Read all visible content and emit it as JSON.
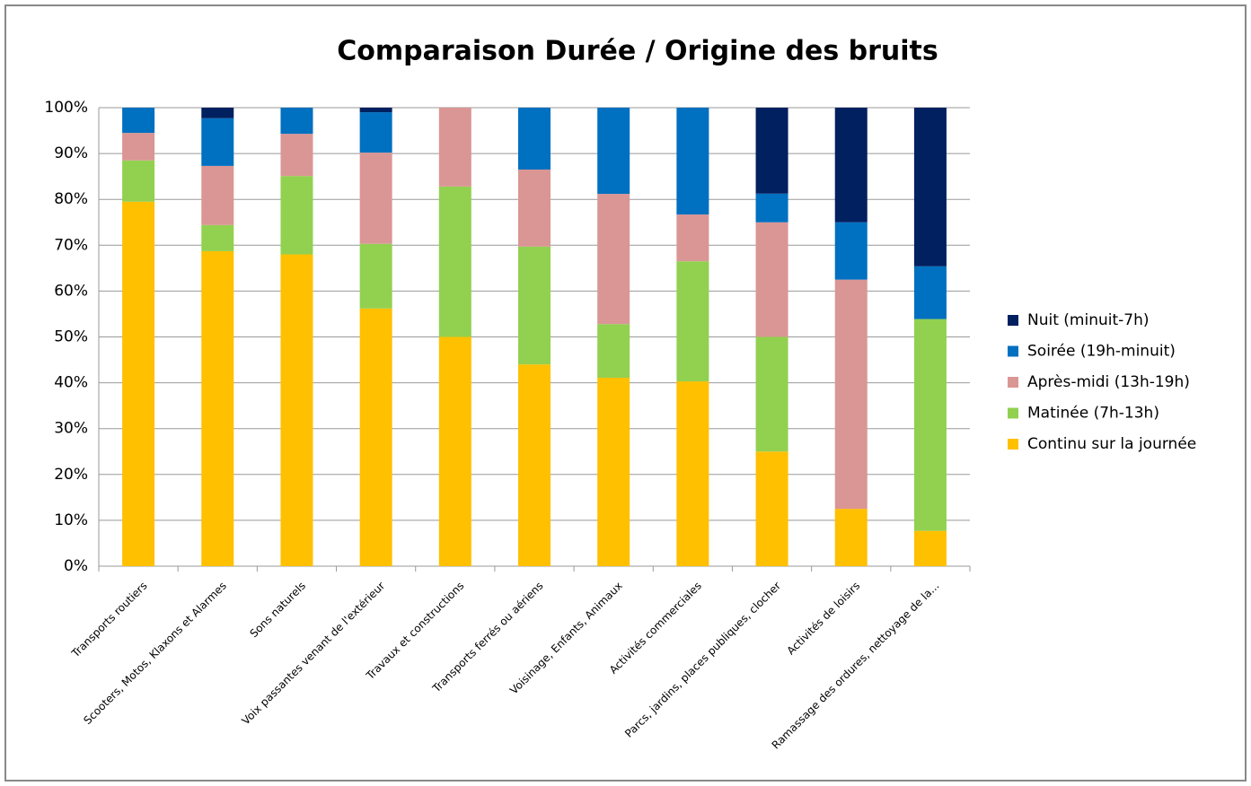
{
  "chart_data": {
    "type": "stacked_bar",
    "title": "Comparaison Durée / Origine des bruits",
    "categories": [
      "Transports routiers",
      "Scooters, Motos, Klaxons et Alarmes",
      "Sons naturels",
      "Voix passantes venant de l'extérieur",
      "Travaux et constructions",
      "Transports ferrés ou aériens",
      "Voisinage, Enfants, Animaux",
      "Activités commerciales",
      "Parcs, jardins, places publiques, clocher",
      "Activités de loisirs",
      "Ramassage des ordures, nettoyage de la..."
    ],
    "series": [
      {
        "name": "Continu sur la journée",
        "color": "#ffc000",
        "values": [
          79.5,
          68.7,
          68,
          56.2,
          50,
          44,
          41.1,
          40.3,
          25,
          12.5,
          7.7
        ]
      },
      {
        "name": "Matinée (7h-13h)",
        "color": "#92d050",
        "values": [
          9,
          5.7,
          17.1,
          14.1,
          32.8,
          25.7,
          11.7,
          26.2,
          25,
          0,
          46.2
        ]
      },
      {
        "name": "Après-midi (13h-19h)",
        "color": "#da9694",
        "values": [
          6,
          12.9,
          9.2,
          19.9,
          17.2,
          16.8,
          28.4,
          10.2,
          25,
          50,
          0
        ]
      },
      {
        "name": "Soirée (19h-minuit)",
        "color": "#0070c0",
        "values": [
          5.5,
          10.4,
          5.7,
          8.8,
          0,
          13.5,
          18.8,
          23.3,
          6.25,
          12.5,
          11.5
        ]
      },
      {
        "name": "Nuit (minuit-7h)",
        "color": "#002060",
        "values": [
          0,
          2.3,
          0,
          1,
          0,
          0,
          0,
          0,
          18.75,
          25,
          34.6
        ]
      }
    ],
    "ylim": [
      0,
      100
    ],
    "yticks": [
      {
        "value": 0,
        "label": "0%"
      },
      {
        "value": 10,
        "label": "10%"
      },
      {
        "value": 20,
        "label": "20%"
      },
      {
        "value": 30,
        "label": "30%"
      },
      {
        "value": 40,
        "label": "40%"
      },
      {
        "value": 50,
        "label": "50%"
      },
      {
        "value": 60,
        "label": "60%"
      },
      {
        "value": 70,
        "label": "70%"
      },
      {
        "value": 80,
        "label": "80%"
      },
      {
        "value": 90,
        "label": "90%"
      },
      {
        "value": 100,
        "label": "100%"
      }
    ],
    "grid": true,
    "legend": "right"
  }
}
